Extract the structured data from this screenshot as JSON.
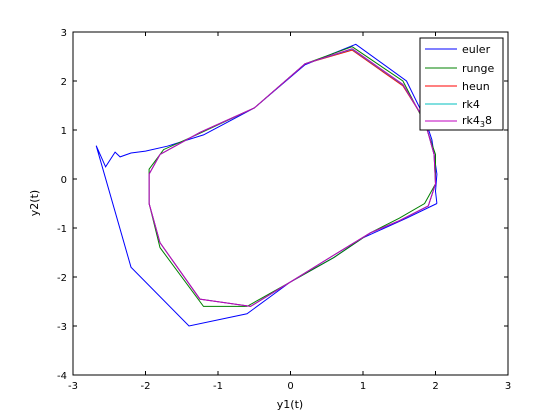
{
  "chart_data": {
    "type": "line",
    "xlabel": "y1(t)",
    "ylabel": "y2(t)",
    "xlim": [
      -3,
      3
    ],
    "ylim": [
      -4,
      3
    ],
    "xticks": [
      "-3",
      "-2",
      "-1",
      "0",
      "1",
      "2",
      "3"
    ],
    "yticks": [
      "-4",
      "-3",
      "-2",
      "-1",
      "0",
      "1",
      "2",
      "3"
    ],
    "grid": false,
    "legend_position": "top-right",
    "series": [
      {
        "name": "euler",
        "color": "#0000ff",
        "points": [
          [
            2.02,
            -0.5
          ],
          [
            2.0,
            -0.25
          ],
          [
            2.02,
            0.1
          ],
          [
            1.95,
            0.8
          ],
          [
            1.85,
            1.25
          ],
          [
            1.6,
            2.0
          ],
          [
            0.9,
            2.75
          ],
          [
            0.2,
            2.33
          ],
          [
            -0.5,
            1.45
          ],
          [
            -1.2,
            0.9
          ],
          [
            -1.7,
            0.67
          ],
          [
            -2.0,
            0.57
          ],
          [
            -2.2,
            0.53
          ],
          [
            -2.35,
            0.45
          ],
          [
            -2.42,
            0.55
          ],
          [
            -2.55,
            0.25
          ],
          [
            -2.68,
            0.68
          ],
          [
            -2.2,
            -1.8
          ],
          [
            -1.4,
            -3.0
          ],
          [
            -0.6,
            -2.75
          ],
          [
            0.0,
            -2.1
          ],
          [
            0.6,
            -1.6
          ],
          [
            1.0,
            -1.2
          ],
          [
            1.6,
            -0.8
          ],
          [
            2.02,
            -0.5
          ]
        ]
      },
      {
        "name": "runge",
        "color": "#008000",
        "points": [
          [
            0.85,
            2.7
          ],
          [
            0.2,
            2.35
          ],
          [
            -0.5,
            1.45
          ],
          [
            -1.3,
            0.9
          ],
          [
            -1.75,
            0.6
          ],
          [
            -1.95,
            0.2
          ],
          [
            -1.95,
            -0.5
          ],
          [
            -1.8,
            -1.4
          ],
          [
            -1.2,
            -2.6
          ],
          [
            -0.6,
            -2.6
          ],
          [
            0.0,
            -2.1
          ],
          [
            0.6,
            -1.6
          ],
          [
            1.1,
            -1.1
          ],
          [
            1.5,
            -0.8
          ],
          [
            1.85,
            -0.5
          ],
          [
            2.0,
            -0.1
          ],
          [
            2.0,
            0.5
          ],
          [
            1.85,
            1.15
          ],
          [
            1.55,
            2.0
          ],
          [
            0.85,
            2.7
          ]
        ]
      },
      {
        "name": "heun",
        "color": "#ff0000",
        "points": [
          [
            0.85,
            2.63
          ],
          [
            0.2,
            2.35
          ],
          [
            -0.5,
            1.45
          ],
          [
            -1.25,
            0.95
          ],
          [
            -1.8,
            0.5
          ],
          [
            -1.95,
            0.1
          ],
          [
            -1.95,
            -0.5
          ],
          [
            -1.8,
            -1.3
          ],
          [
            -1.25,
            -2.45
          ],
          [
            -0.55,
            -2.6
          ],
          [
            0.0,
            -2.1
          ],
          [
            0.6,
            -1.55
          ],
          [
            1.1,
            -1.1
          ],
          [
            1.5,
            -0.85
          ],
          [
            1.9,
            -0.55
          ],
          [
            2.0,
            -0.1
          ],
          [
            1.98,
            0.5
          ],
          [
            1.85,
            1.2
          ],
          [
            1.55,
            1.9
          ],
          [
            0.85,
            2.63
          ]
        ]
      },
      {
        "name": "rk4",
        "color": "#00bfbf",
        "points": [
          [
            0.85,
            2.65
          ],
          [
            0.2,
            2.35
          ],
          [
            -0.5,
            1.45
          ],
          [
            -1.25,
            0.95
          ],
          [
            -1.8,
            0.5
          ],
          [
            -1.95,
            0.1
          ],
          [
            -1.95,
            -0.5
          ],
          [
            -1.8,
            -1.3
          ],
          [
            -1.25,
            -2.45
          ],
          [
            -0.55,
            -2.6
          ],
          [
            0.0,
            -2.1
          ],
          [
            0.6,
            -1.55
          ],
          [
            1.1,
            -1.1
          ],
          [
            1.5,
            -0.85
          ],
          [
            1.9,
            -0.55
          ],
          [
            2.0,
            -0.1
          ],
          [
            1.98,
            0.5
          ],
          [
            1.85,
            1.2
          ],
          [
            1.55,
            1.92
          ],
          [
            0.85,
            2.65
          ]
        ]
      },
      {
        "name": "rk4_3_8",
        "color": "#bf00bf",
        "points": [
          [
            0.85,
            2.66
          ],
          [
            0.2,
            2.35
          ],
          [
            -0.5,
            1.45
          ],
          [
            -1.25,
            0.95
          ],
          [
            -1.8,
            0.5
          ],
          [
            -1.95,
            0.1
          ],
          [
            -1.95,
            -0.5
          ],
          [
            -1.8,
            -1.3
          ],
          [
            -1.25,
            -2.45
          ],
          [
            -0.55,
            -2.6
          ],
          [
            0.0,
            -2.1
          ],
          [
            0.6,
            -1.55
          ],
          [
            1.1,
            -1.1
          ],
          [
            1.5,
            -0.85
          ],
          [
            1.9,
            -0.55
          ],
          [
            2.0,
            -0.1
          ],
          [
            1.98,
            0.5
          ],
          [
            1.85,
            1.2
          ],
          [
            1.55,
            1.93
          ],
          [
            0.85,
            2.66
          ]
        ]
      }
    ]
  },
  "legend": {
    "items": [
      {
        "text": "euler",
        "color": "#0000ff"
      },
      {
        "text": "runge",
        "color": "#008000"
      },
      {
        "text": "heun",
        "color": "#ff0000"
      },
      {
        "text": "rk4",
        "color": "#00bfbf"
      },
      {
        "text": "rk4",
        "sub": "3",
        "tail": "8",
        "color": "#bf00bf"
      }
    ]
  }
}
